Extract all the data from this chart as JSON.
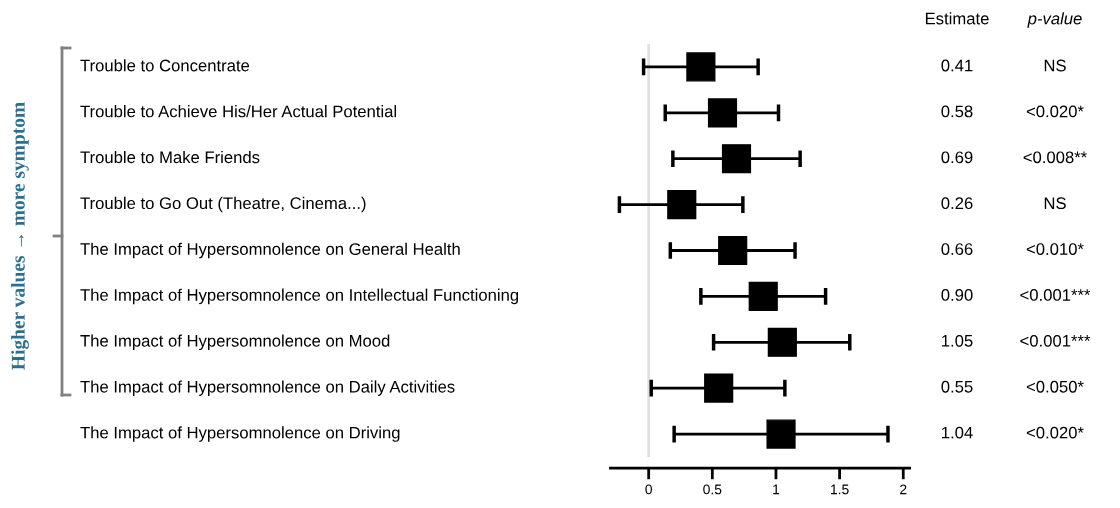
{
  "chart_data": {
    "type": "scatter",
    "ylabel": "Higher values → more symptom",
    "categories": [
      "Trouble to Concentrate",
      "Trouble to Achieve His/Her Actual Potential",
      "Trouble to Make Friends",
      "Trouble to Go Out (Theatre, Cinema...)",
      "The Impact of Hypersomnolence on General Health",
      "The Impact of Hypersomnolence on Intellectual Functioning",
      "The Impact of Hypersomnolence on Mood",
      "The Impact of Hypersomnolence on Daily Activities",
      "The Impact of Hypersomnolence on Driving"
    ],
    "orientation": "horizontal",
    "value_labels": [
      "0.41",
      "0.58",
      "0.69",
      "0.26",
      "0.66",
      "0.90",
      "1.05",
      "0.55",
      "1.04"
    ],
    "values": [
      0.41,
      0.58,
      0.69,
      0.26,
      0.66,
      0.9,
      1.05,
      0.55,
      1.04
    ],
    "errors": [
      [
        -0.04,
        0.86
      ],
      [
        0.13,
        1.02
      ],
      [
        0.19,
        1.19
      ],
      [
        -0.23,
        0.74
      ],
      [
        0.17,
        1.15
      ],
      [
        0.41,
        1.39
      ],
      [
        0.51,
        1.58
      ],
      [
        0.02,
        1.07
      ],
      [
        0.2,
        1.88
      ]
    ],
    "color": "#000000",
    "marker": "square",
    "xlim": [
      -0.3,
      2.05
    ],
    "xticks": [
      0,
      0.5,
      1,
      1.5,
      2
    ],
    "ref_lines": [
      {
        "axis": "x",
        "value": 0,
        "color": "#e0e0e0"
      }
    ],
    "annotations": [
      "Estimate",
      "p-value",
      "NS",
      "<0.020*",
      "<0.008**",
      "NS",
      "<0.010*",
      "<0.001***",
      "<0.001***",
      "<0.050*",
      "<0.020*"
    ]
  }
}
